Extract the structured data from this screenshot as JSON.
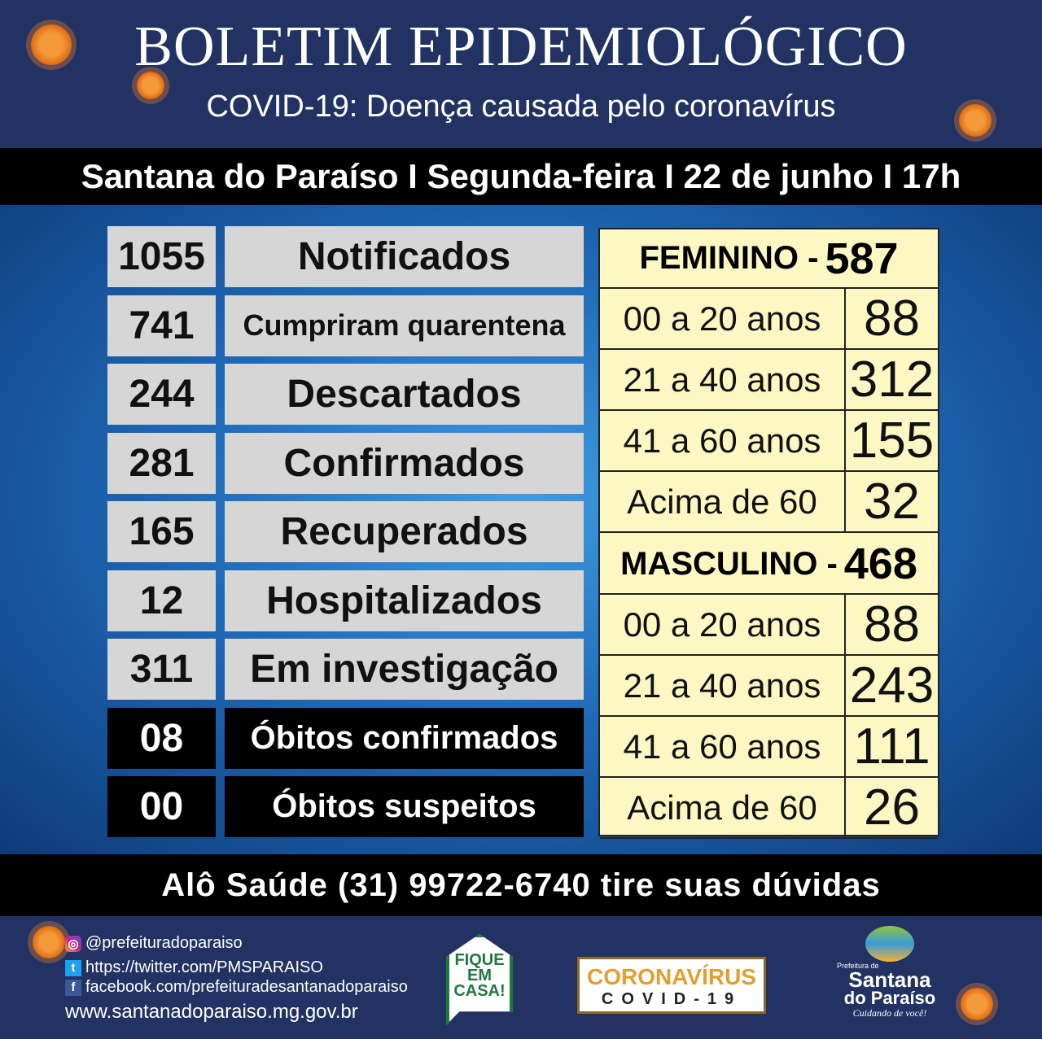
{
  "header": {
    "title": "BOLETIM EPIDEMIOLÓGICO",
    "subtitle": "COVID-19: Doença causada pelo coronavírus"
  },
  "location_bar": "Santana do Paraíso I Segunda-feira I 22 de junho I 17h",
  "stats": [
    {
      "value": "1055",
      "label": "Notificados"
    },
    {
      "value": "741",
      "label": "Cumpriram quarentena"
    },
    {
      "value": "244",
      "label": "Descartados"
    },
    {
      "value": "281",
      "label": "Confirmados"
    },
    {
      "value": "165",
      "label": "Recuperados"
    },
    {
      "value": "12",
      "label": "Hospitalizados"
    },
    {
      "value": "311",
      "label": "Em investigação"
    },
    {
      "value": "08",
      "label": "Óbitos confirmados"
    },
    {
      "value": "00",
      "label": "Óbitos suspeitos"
    }
  ],
  "feminino": {
    "label": "FEMININO -",
    "total": "587",
    "rows": [
      {
        "age": "00 a 20 anos",
        "value": "88"
      },
      {
        "age": "21 a 40 anos",
        "value": "312"
      },
      {
        "age": "41 a 60 anos",
        "value": "155"
      },
      {
        "age": "Acima de 60",
        "value": "32"
      }
    ]
  },
  "masculino": {
    "label": "MASCULINO -",
    "total": "468",
    "rows": [
      {
        "age": "00 a 20 anos",
        "value": "88"
      },
      {
        "age": "21 a 40 anos",
        "value": "243"
      },
      {
        "age": "41 a 60 anos",
        "value": "111"
      },
      {
        "age": "Acima de 60",
        "value": "26"
      }
    ]
  },
  "help_bar": "Alô Saúde (31) 99722-6740 tire suas dúvidas",
  "footer": {
    "instagram": "@prefeituradoparaiso",
    "twitter": "https://twitter.com/PMSPARAISO",
    "facebook": "facebook.com/prefeituradesantanadoparaiso",
    "website": "www.santanadoparaiso.mg.gov.br",
    "stay_home": [
      "FIQUE",
      "EM",
      "CASA!"
    ],
    "covid_badge": {
      "line1": "CORONAVÍRUS",
      "line2": "COVID-19"
    },
    "logo": {
      "pre": "Prefeitura de",
      "name1": "Santana",
      "name2": "do Paraíso",
      "tagline": "Cuidando de você!"
    }
  }
}
